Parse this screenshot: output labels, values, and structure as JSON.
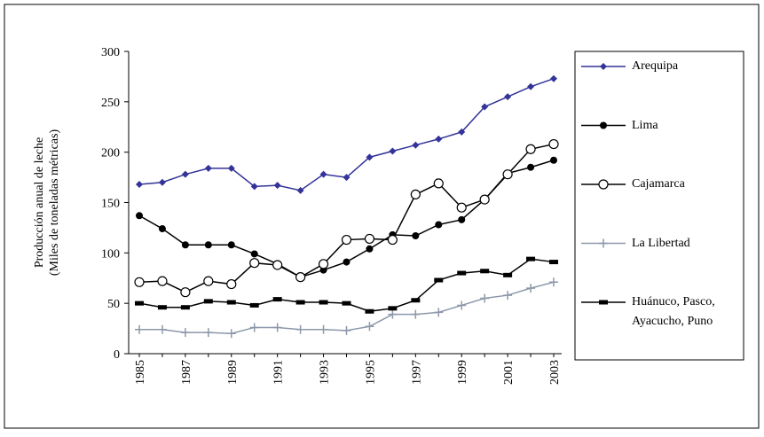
{
  "chart_data": {
    "type": "line",
    "ylabel": [
      "Producción anual de leche",
      "(Miles de toneladas métricas)"
    ],
    "categories": [
      "1985",
      null,
      "1987",
      null,
      "1989",
      null,
      "1991",
      null,
      "1993",
      null,
      "1995",
      null,
      "1997",
      null,
      "1999",
      null,
      "2001",
      null,
      "2003"
    ],
    "ylim": [
      0,
      300
    ],
    "yticks": [
      0,
      50,
      100,
      150,
      200,
      250,
      300
    ],
    "grid": false,
    "legend": "right",
    "series": [
      {
        "name": "Arequipa",
        "color": "#333399",
        "marker": "diamond",
        "values": [
          168,
          170,
          178,
          184,
          184,
          166,
          167,
          162,
          178,
          175,
          195,
          201,
          207,
          213,
          220,
          245,
          255,
          265,
          273
        ]
      },
      {
        "name": "Lima",
        "color": "#000000",
        "marker": "circle",
        "values": [
          137,
          124,
          108,
          108,
          108,
          99,
          89,
          76,
          83,
          91,
          104,
          118,
          117,
          128,
          133,
          153,
          179,
          185,
          192
        ]
      },
      {
        "name": "Cajamarca",
        "color": "#000000",
        "marker": "open-circle",
        "values": [
          71,
          72,
          61,
          72,
          69,
          90,
          88,
          76,
          89,
          113,
          114,
          113,
          158,
          169,
          145,
          153,
          178,
          203,
          208
        ]
      },
      {
        "name": "La Libertad",
        "color": "#8c98aa",
        "marker": "plus",
        "values": [
          24,
          24,
          21,
          21,
          20,
          26,
          26,
          24,
          24,
          23,
          27,
          39,
          39,
          41,
          48,
          55,
          58,
          65,
          71
        ]
      },
      {
        "name": "Huánuco, Pasco, Ayacucho, Puno",
        "color": "#000000",
        "marker": "dash",
        "values": [
          50,
          46,
          46,
          52,
          51,
          48,
          54,
          51,
          51,
          50,
          42,
          45,
          53,
          73,
          80,
          82,
          78,
          94,
          91
        ]
      }
    ]
  }
}
